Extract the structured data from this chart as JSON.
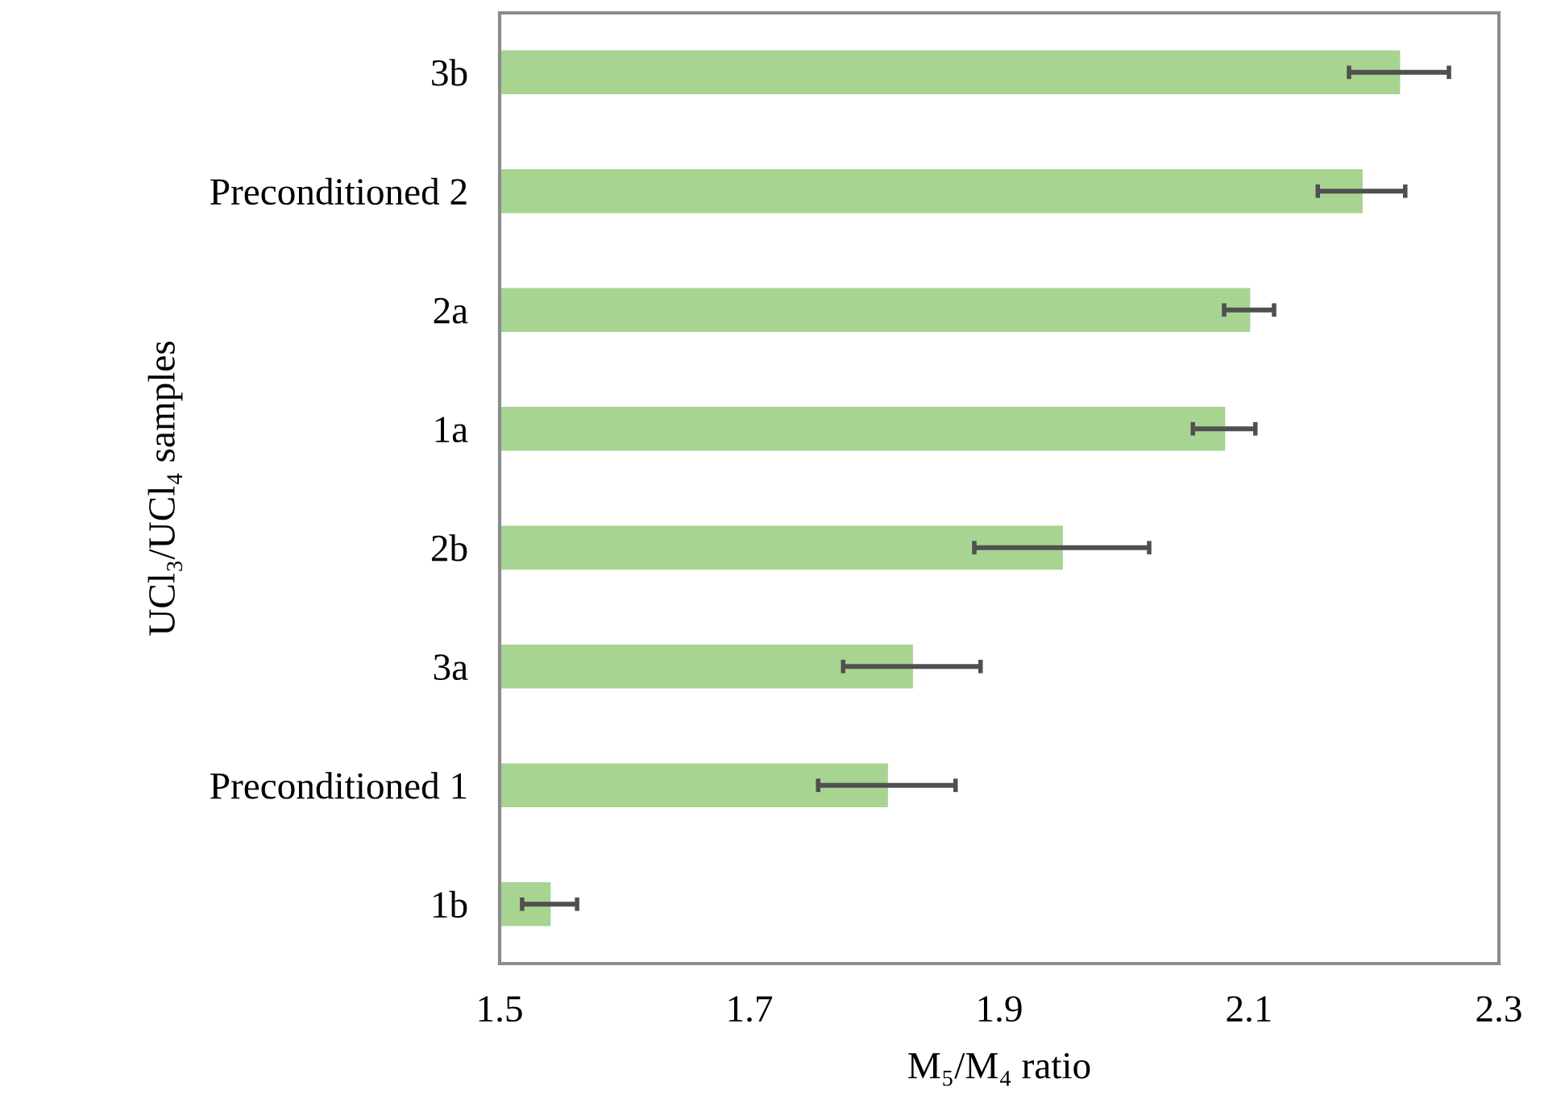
{
  "chart_data": {
    "type": "bar",
    "orientation": "horizontal",
    "categories": [
      "3b",
      "Preconditioned 2",
      "2a",
      "1a",
      "2b",
      "3a",
      "Preconditioned 1",
      "1b"
    ],
    "values": [
      2.22,
      2.19,
      2.1,
      2.08,
      1.95,
      1.83,
      1.81,
      1.54
    ],
    "errors": [
      0.04,
      0.035,
      0.02,
      0.025,
      0.07,
      0.055,
      0.055,
      0.022
    ],
    "color": "#a8d492",
    "xlim": [
      1.5,
      2.3
    ],
    "xticks": [
      1.5,
      1.7,
      1.9,
      2.1,
      2.3
    ],
    "xlabel": "M₅/M₄ ratio",
    "ylabel": "UCl₃/UCl₄ samples",
    "grid": false,
    "legend": false
  }
}
